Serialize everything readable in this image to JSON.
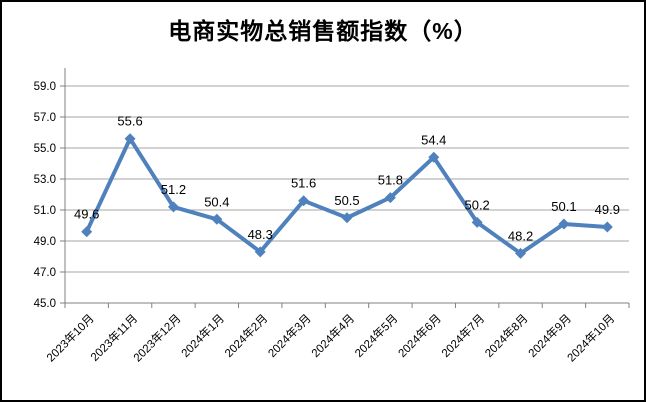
{
  "chart_data": {
    "type": "line",
    "title": "电商实物总销售额指数（%）",
    "categories": [
      "2023年10月",
      "2023年11月",
      "2023年12月",
      "2024年1月",
      "2024年2月",
      "2024年3月",
      "2024年4月",
      "2024年5月",
      "2024年6月",
      "2024年7月",
      "2024年8月",
      "2024年9月",
      "2024年10月"
    ],
    "values": [
      49.6,
      55.6,
      51.2,
      50.4,
      48.3,
      51.6,
      50.5,
      51.8,
      54.4,
      50.2,
      48.2,
      50.1,
      49.9
    ],
    "data_labels": [
      "49.6",
      "55.6",
      "51.2",
      "50.4",
      "48.3",
      "51.6",
      "50.5",
      "51.8",
      "54.4",
      "50.2",
      "48.2",
      "50.1",
      "49.9"
    ],
    "ylim": [
      45.0,
      59.0
    ],
    "ytick_step": 2.0,
    "ytick_labels": [
      "45.0",
      "47.0",
      "49.0",
      "51.0",
      "53.0",
      "55.0",
      "57.0",
      "59.0"
    ],
    "xlabel": "",
    "ylabel": "",
    "grid": true,
    "legend": false,
    "marker": "diamond",
    "colors": {
      "line": "#4F81BD",
      "grid": "#A6A6A6",
      "axis": "#808080",
      "text": "#000000",
      "background": "#FFFFFF",
      "border": "#000000"
    }
  }
}
